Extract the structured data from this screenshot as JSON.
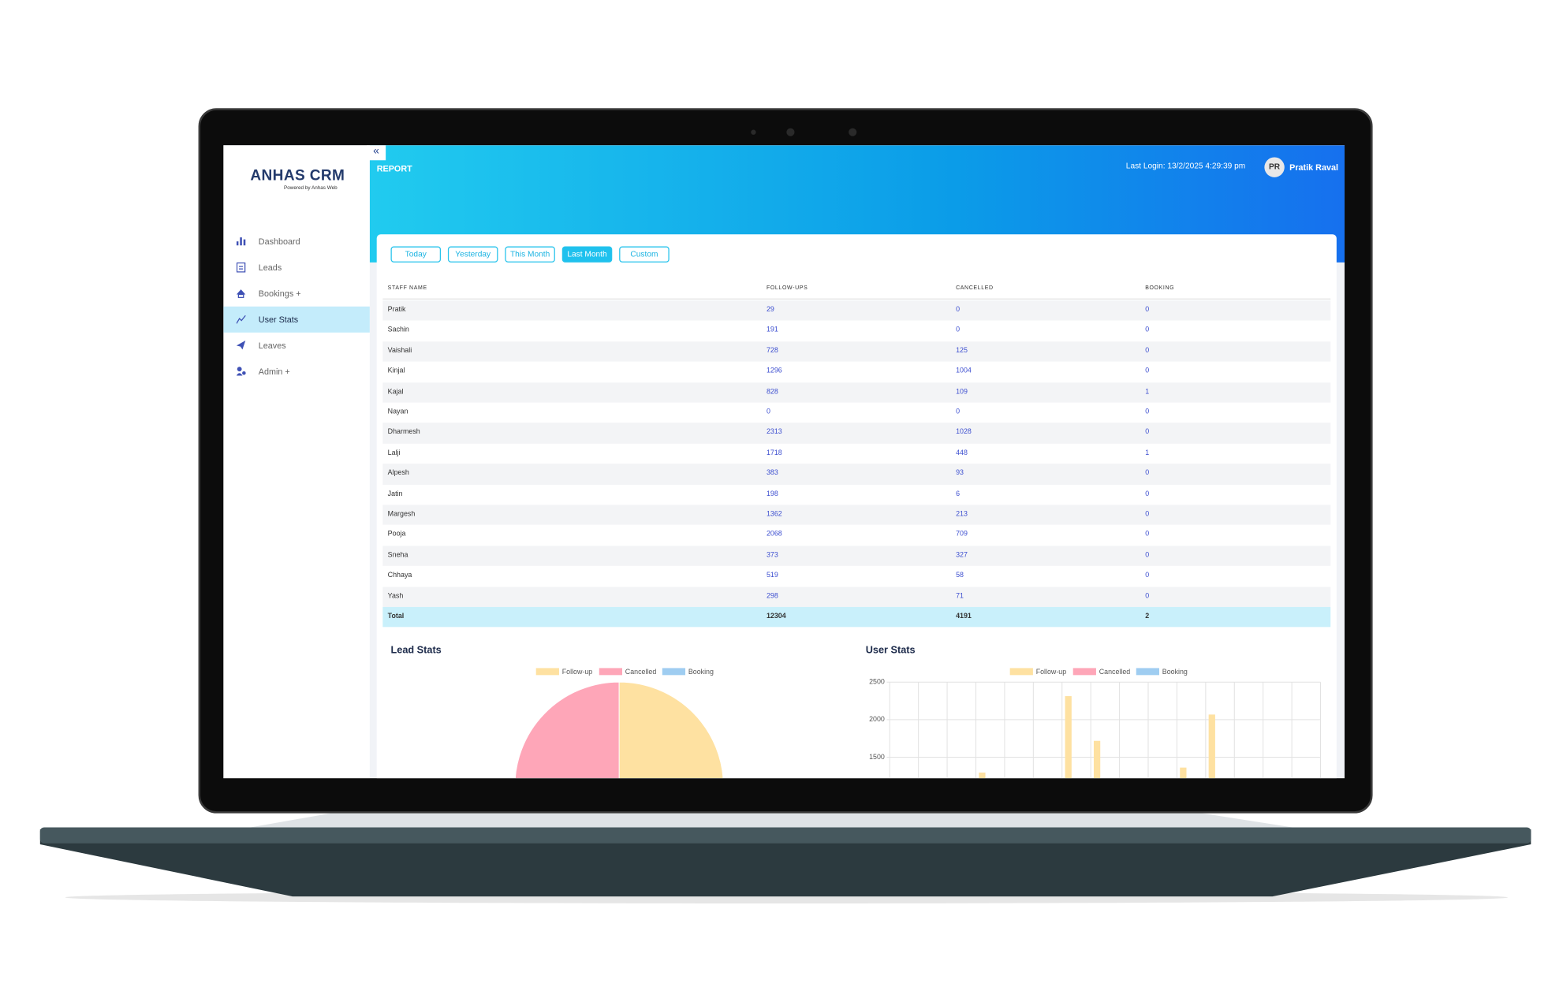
{
  "sidebar": {
    "brand": "ANHAS CRM",
    "tagline": "Powered by Anhas Web",
    "nav": [
      "Dashboard",
      "Leads",
      "Bookings +",
      "User Stats",
      "Leaves",
      "Admin +"
    ],
    "active": 3
  },
  "header": {
    "title": "REPORT",
    "last_login": "Last Login: 13/2/2025 4:29:39 pm",
    "avatar": "PR",
    "user": "Pratik Raval"
  },
  "filters": {
    "options": [
      "Today",
      "Yesterday",
      "This Month",
      "Last Month",
      "Custom"
    ],
    "active": 3
  },
  "table": {
    "columns": [
      "STAFF NAME",
      "FOLLOW-UPS",
      "CANCELLED",
      "BOOKING"
    ],
    "rows": [
      [
        "Pratik",
        29,
        0,
        0
      ],
      [
        "Sachin",
        191,
        0,
        0
      ],
      [
        "Vaishali",
        728,
        125,
        0
      ],
      [
        "Kinjal",
        1296,
        1004,
        0
      ],
      [
        "Kajal",
        828,
        109,
        1
      ],
      [
        "Nayan",
        0,
        0,
        0
      ],
      [
        "Dharmesh",
        2313,
        1028,
        0
      ],
      [
        "Lalji",
        1718,
        448,
        1
      ],
      [
        "Alpesh",
        383,
        93,
        0
      ],
      [
        "Jatin",
        198,
        6,
        0
      ],
      [
        "Margesh",
        1362,
        213,
        0
      ],
      [
        "Pooja",
        2068,
        709,
        0
      ],
      [
        "Sneha",
        373,
        327,
        0
      ],
      [
        "Chhaya",
        519,
        58,
        0
      ],
      [
        "Yash",
        298,
        71,
        0
      ]
    ],
    "total": [
      "Total",
      12304,
      4191,
      2
    ]
  },
  "lead_stats": {
    "type": "pie",
    "title": "Lead Stats",
    "series": [
      {
        "name": "Follow-up",
        "color": "#fee1a1"
      },
      {
        "name": "Cancelled",
        "color": "#fea6b8"
      },
      {
        "name": "Booking",
        "color": "#9fcdf1"
      }
    ]
  },
  "user_stats": {
    "type": "bar",
    "title": "User Stats",
    "series": [
      {
        "name": "Follow-up",
        "color": "#fee1a1"
      },
      {
        "name": "Cancelled",
        "color": "#fea6b8"
      },
      {
        "name": "Booking",
        "color": "#9fcdf1"
      }
    ],
    "ylim": [
      0,
      2500
    ],
    "yticks": [
      1500,
      2000,
      2500
    ],
    "grid": true
  }
}
